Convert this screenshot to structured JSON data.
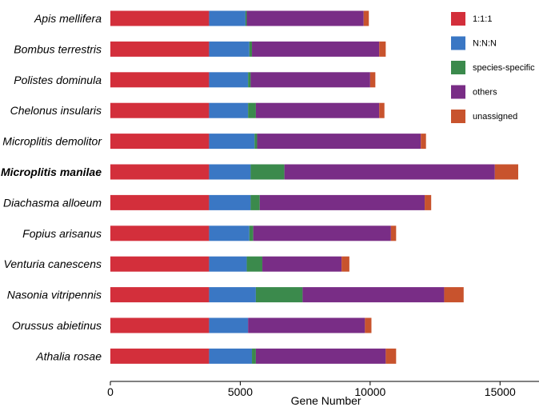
{
  "chart_data": {
    "type": "bar",
    "orientation": "horizontal",
    "stacked": true,
    "title": "",
    "xlabel": "Gene Number",
    "ylabel": "",
    "xlim": [
      0,
      16500
    ],
    "xticks": [
      0,
      5000,
      10000,
      15000
    ],
    "xtick_labels": [
      "0",
      "5000",
      "10000",
      "15000"
    ],
    "grid": false,
    "legend_position": "top-right",
    "categories": [
      "Apis mellifera",
      "Bombus terrestris",
      "Polistes dominula",
      "Chelonus insularis",
      "Microplitis demolitor",
      "Microplitis manilae",
      "Diachasma alloeum",
      "Fopius arisanus",
      "Venturia canescens",
      "Nasonia vitripennis",
      "Orussus abietinus",
      "Athalia rosae"
    ],
    "highlighted_category": "Microplitis manilae",
    "series": [
      {
        "name": "1:1:1",
        "color": "#d32f3b",
        "values": [
          3800,
          3800,
          3800,
          3800,
          3800,
          3800,
          3800,
          3800,
          3800,
          3800,
          3800,
          3800
        ]
      },
      {
        "name": "N:N:N",
        "color": "#3a77c4",
        "values": [
          1400,
          1550,
          1500,
          1500,
          1750,
          1600,
          1600,
          1550,
          1450,
          1800,
          1500,
          1650
        ]
      },
      {
        "name": "species-specific",
        "color": "#3b8a4c",
        "values": [
          50,
          100,
          100,
          300,
          100,
          1300,
          350,
          150,
          600,
          1800,
          0,
          150
        ]
      },
      {
        "name": "others",
        "color": "#792d86",
        "values": [
          4500,
          4900,
          4600,
          4750,
          6300,
          8100,
          6350,
          5300,
          3050,
          5450,
          4500,
          5000
        ]
      },
      {
        "name": "unassigned",
        "color": "#c8532d",
        "values": [
          200,
          250,
          200,
          200,
          200,
          900,
          250,
          200,
          300,
          750,
          250,
          400
        ]
      }
    ]
  }
}
